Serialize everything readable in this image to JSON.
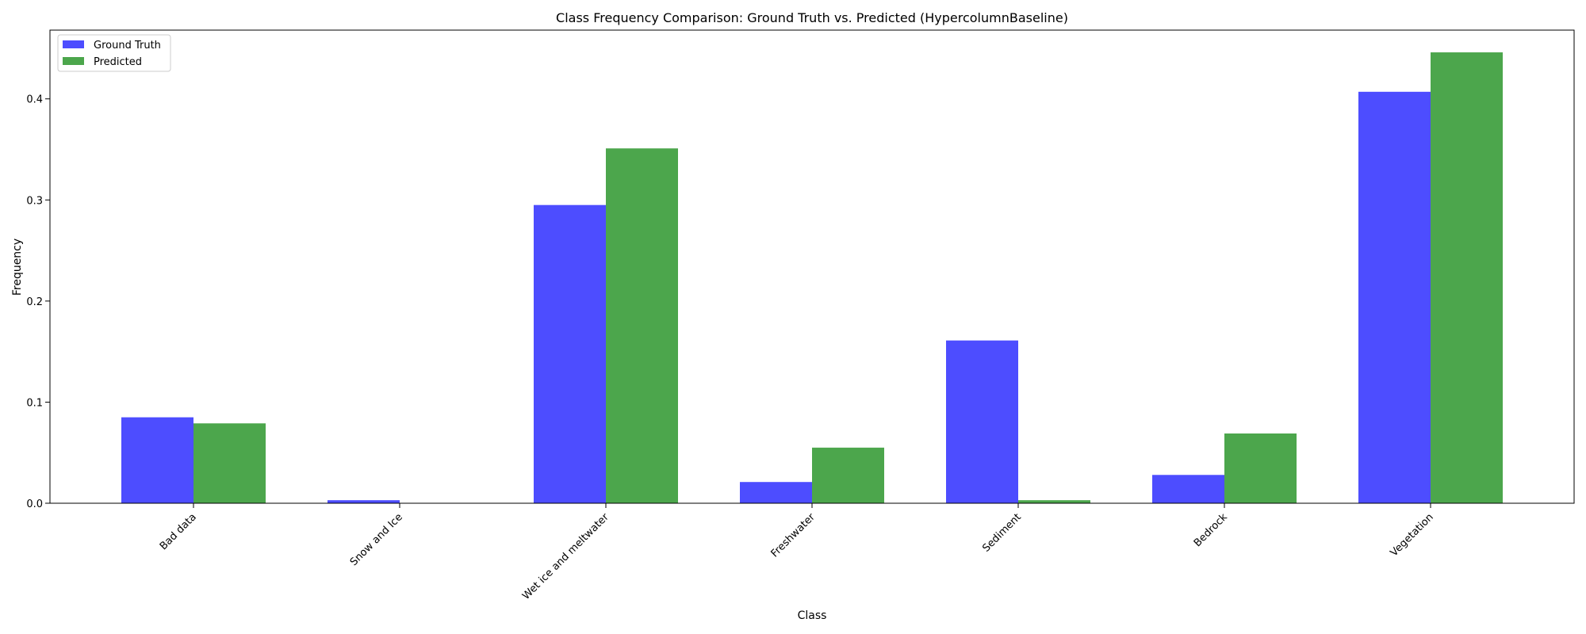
{
  "chart_data": {
    "type": "bar",
    "title": "Class Frequency Comparison: Ground Truth vs. Predicted (HypercolumnBaseline)",
    "xlabel": "Class",
    "ylabel": "Frequency",
    "categories": [
      "Bad data",
      "Snow and Ice",
      "Wet ice and meltwater",
      "Freshwater",
      "Sediment",
      "Bedrock",
      "Vegetation"
    ],
    "series": [
      {
        "name": "Ground Truth",
        "color": "#4d4dff",
        "values": [
          0.085,
          0.003,
          0.295,
          0.021,
          0.161,
          0.028,
          0.407
        ]
      },
      {
        "name": "Predicted",
        "color": "#4ca64c",
        "values": [
          0.079,
          0.0,
          0.351,
          0.055,
          0.003,
          0.069,
          0.446
        ]
      }
    ],
    "ylim": [
      0,
      0.468
    ],
    "yticks": [
      0.0,
      0.1,
      0.2,
      0.3,
      0.4
    ],
    "ytick_labels": [
      "0.0",
      "0.1",
      "0.2",
      "0.3",
      "0.4"
    ],
    "legend_position": "upper-left",
    "grid": false
  }
}
